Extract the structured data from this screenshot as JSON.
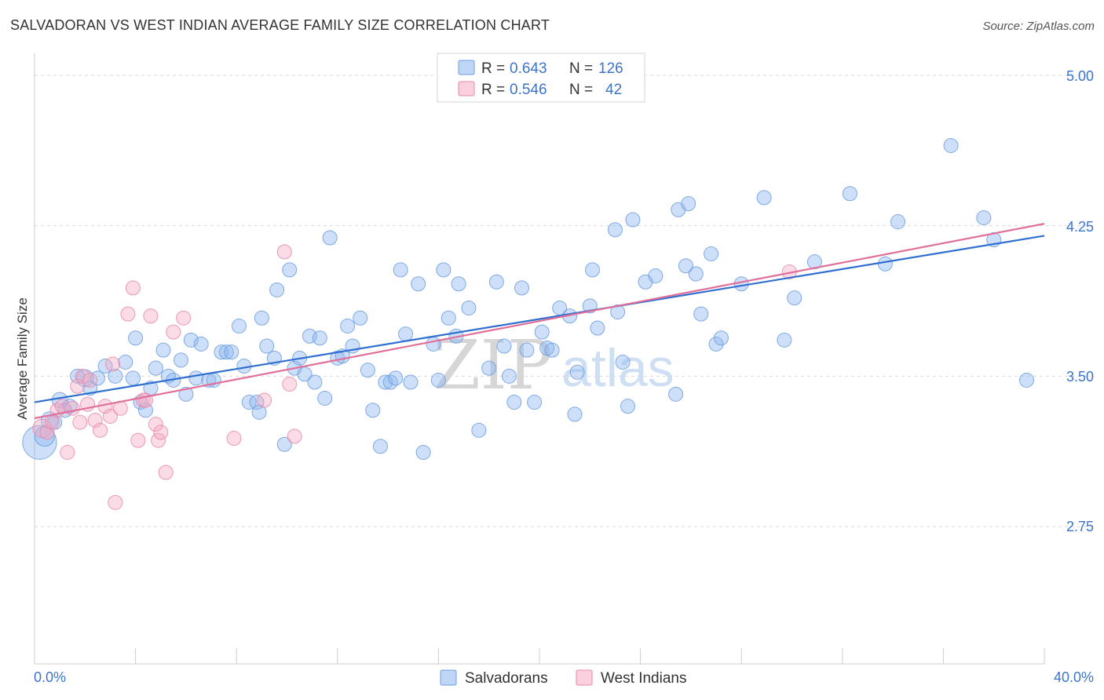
{
  "chart_data": {
    "type": "scatter",
    "title": "SALVADORAN VS WEST INDIAN AVERAGE FAMILY SIZE CORRELATION CHART",
    "source": "Source: ZipAtlas.com",
    "xlabel": "",
    "ylabel": "Average Family Size",
    "xlim": [
      0,
      40
    ],
    "ylim": [
      2.0,
      5.05
    ],
    "x_tick_labels": [
      "0.0%",
      "40.0%"
    ],
    "y_ticks": [
      2.75,
      3.5,
      4.25,
      5.0
    ],
    "y_tick_labels": [
      "2.75",
      "3.50",
      "4.25",
      "5.00"
    ],
    "grid": true,
    "watermark": [
      "ZIP",
      "atlas"
    ],
    "legend": {
      "placement": "top-center",
      "entries": [
        {
          "r_label": "R =",
          "r_value": "0.643",
          "n_label": "N =",
          "n_value": "126"
        },
        {
          "r_label": "R =",
          "r_value": "0.546",
          "n_label": "N =",
          "n_value": "42"
        }
      ]
    },
    "series": [
      {
        "name": "Salvadorans",
        "color": "#8ab4f0",
        "stroke": "#6c9ce0",
        "trend_color": "#2f6fd0",
        "trend": {
          "x": [
            0,
            40
          ],
          "y": [
            3.37,
            4.2
          ]
        },
        "points": [
          [
            0.2,
            3.17,
            24
          ],
          [
            0.4,
            3.2,
            14
          ],
          [
            0.6,
            3.28,
            12
          ],
          [
            0.8,
            3.27,
            10
          ],
          [
            1.0,
            3.38,
            11
          ],
          [
            1.2,
            3.33,
            10
          ],
          [
            1.4,
            3.35,
            10
          ],
          [
            1.7,
            3.5,
            10
          ],
          [
            2.0,
            3.49,
            12
          ],
          [
            2.2,
            3.44,
            10
          ],
          [
            2.5,
            3.49,
            10
          ],
          [
            2.8,
            3.55,
            10
          ],
          [
            3.2,
            3.5,
            10
          ],
          [
            3.6,
            3.57,
            10
          ],
          [
            3.9,
            3.49,
            10
          ],
          [
            4.0,
            3.69,
            10
          ],
          [
            4.2,
            3.37,
            10
          ],
          [
            4.4,
            3.33,
            10
          ],
          [
            4.6,
            3.44,
            10
          ],
          [
            4.8,
            3.54,
            10
          ],
          [
            5.1,
            3.63,
            10
          ],
          [
            5.3,
            3.5,
            10
          ],
          [
            5.5,
            3.48,
            10
          ],
          [
            5.8,
            3.58,
            10
          ],
          [
            6.0,
            3.41,
            10
          ],
          [
            6.2,
            3.68,
            10
          ],
          [
            6.4,
            3.49,
            10
          ],
          [
            6.6,
            3.66,
            10
          ],
          [
            6.9,
            3.48,
            10
          ],
          [
            7.1,
            3.48,
            10
          ],
          [
            7.4,
            3.62,
            10
          ],
          [
            7.6,
            3.62,
            10
          ],
          [
            7.8,
            3.62,
            10
          ],
          [
            8.1,
            3.75,
            10
          ],
          [
            8.3,
            3.55,
            10
          ],
          [
            8.5,
            3.37,
            10
          ],
          [
            8.8,
            3.37,
            10
          ],
          [
            8.9,
            3.32,
            10
          ],
          [
            9.0,
            3.79,
            10
          ],
          [
            9.2,
            3.65,
            10
          ],
          [
            9.5,
            3.59,
            10
          ],
          [
            9.6,
            3.93,
            10
          ],
          [
            9.9,
            3.16,
            10
          ],
          [
            10.1,
            4.03,
            10
          ],
          [
            10.3,
            3.54,
            10
          ],
          [
            10.5,
            3.59,
            10
          ],
          [
            10.7,
            3.51,
            10
          ],
          [
            10.9,
            3.7,
            10
          ],
          [
            11.1,
            3.47,
            10
          ],
          [
            11.3,
            3.69,
            10
          ],
          [
            11.5,
            3.39,
            10
          ],
          [
            11.7,
            4.19,
            10
          ],
          [
            12.0,
            3.59,
            10
          ],
          [
            12.2,
            3.6,
            10
          ],
          [
            12.4,
            3.75,
            10
          ],
          [
            12.6,
            3.65,
            10
          ],
          [
            12.9,
            3.79,
            10
          ],
          [
            13.2,
            3.53,
            10
          ],
          [
            13.4,
            3.33,
            10
          ],
          [
            13.7,
            3.15,
            10
          ],
          [
            13.9,
            3.47,
            10
          ],
          [
            14.1,
            3.47,
            10
          ],
          [
            14.3,
            3.49,
            10
          ],
          [
            14.5,
            4.03,
            10
          ],
          [
            14.7,
            3.71,
            10
          ],
          [
            14.9,
            3.47,
            10
          ],
          [
            15.2,
            3.96,
            10
          ],
          [
            15.4,
            3.12,
            10
          ],
          [
            15.8,
            3.66,
            10
          ],
          [
            16.0,
            3.48,
            10
          ],
          [
            16.2,
            4.03,
            10
          ],
          [
            16.4,
            3.79,
            10
          ],
          [
            16.7,
            3.7,
            10
          ],
          [
            16.8,
            3.96,
            10
          ],
          [
            17.2,
            3.84,
            10
          ],
          [
            17.6,
            3.23,
            10
          ],
          [
            18.0,
            3.54,
            10
          ],
          [
            18.3,
            3.97,
            10
          ],
          [
            18.6,
            3.65,
            10
          ],
          [
            18.8,
            3.5,
            10
          ],
          [
            19.0,
            3.37,
            10
          ],
          [
            19.3,
            3.94,
            10
          ],
          [
            19.5,
            3.63,
            10
          ],
          [
            19.8,
            3.37,
            10
          ],
          [
            20.1,
            3.72,
            10
          ],
          [
            20.3,
            3.64,
            10
          ],
          [
            20.5,
            3.63,
            10
          ],
          [
            20.8,
            3.84,
            10
          ],
          [
            21.2,
            3.8,
            10
          ],
          [
            21.4,
            3.31,
            10
          ],
          [
            21.5,
            3.52,
            10
          ],
          [
            22.0,
            3.85,
            10
          ],
          [
            22.1,
            4.03,
            10
          ],
          [
            22.3,
            3.74,
            10
          ],
          [
            23.0,
            4.23,
            10
          ],
          [
            23.1,
            3.82,
            10
          ],
          [
            23.3,
            3.57,
            10
          ],
          [
            23.5,
            3.35,
            10
          ],
          [
            23.7,
            4.28,
            10
          ],
          [
            24.2,
            3.97,
            10
          ],
          [
            24.6,
            4.0,
            10
          ],
          [
            25.4,
            3.41,
            10
          ],
          [
            25.5,
            4.33,
            10
          ],
          [
            25.8,
            4.05,
            10
          ],
          [
            25.9,
            4.36,
            10
          ],
          [
            26.2,
            4.01,
            10
          ],
          [
            26.4,
            3.81,
            10
          ],
          [
            26.8,
            4.11,
            10
          ],
          [
            27.0,
            3.66,
            10
          ],
          [
            27.2,
            3.69,
            10
          ],
          [
            28.0,
            3.96,
            10
          ],
          [
            28.9,
            4.39,
            10
          ],
          [
            29.7,
            3.68,
            10
          ],
          [
            30.1,
            3.89,
            10
          ],
          [
            30.9,
            4.07,
            10
          ],
          [
            32.3,
            4.41,
            10
          ],
          [
            33.7,
            4.06,
            10
          ],
          [
            34.2,
            4.27,
            10
          ],
          [
            36.3,
            4.65,
            10
          ],
          [
            37.6,
            4.29,
            10
          ],
          [
            38.0,
            4.18,
            10
          ],
          [
            39.3,
            3.48,
            10
          ]
        ]
      },
      {
        "name": "West Indians",
        "color": "#f5aac2",
        "stroke": "#e889aa",
        "trend_color": "#e0709a",
        "trend": {
          "x": [
            0,
            40
          ],
          "y": [
            3.29,
            4.26
          ]
        },
        "points": [
          [
            0.3,
            3.24,
            13
          ],
          [
            0.5,
            3.22,
            10
          ],
          [
            0.7,
            3.27,
            10
          ],
          [
            0.9,
            3.33,
            10
          ],
          [
            1.1,
            3.35,
            10
          ],
          [
            1.3,
            3.12,
            10
          ],
          [
            1.5,
            3.34,
            10
          ],
          [
            1.7,
            3.45,
            10
          ],
          [
            1.8,
            3.27,
            10
          ],
          [
            1.9,
            3.5,
            10
          ],
          [
            2.1,
            3.36,
            10
          ],
          [
            2.2,
            3.48,
            10
          ],
          [
            2.4,
            3.28,
            10
          ],
          [
            2.6,
            3.23,
            10
          ],
          [
            2.8,
            3.35,
            10
          ],
          [
            3.0,
            3.3,
            10
          ],
          [
            3.1,
            3.56,
            10
          ],
          [
            3.2,
            2.87,
            10
          ],
          [
            3.4,
            3.34,
            10
          ],
          [
            3.7,
            3.81,
            10
          ],
          [
            3.9,
            3.94,
            10
          ],
          [
            4.1,
            3.18,
            10
          ],
          [
            4.3,
            3.38,
            10
          ],
          [
            4.4,
            3.38,
            10
          ],
          [
            4.6,
            3.8,
            10
          ],
          [
            4.8,
            3.26,
            10
          ],
          [
            4.9,
            3.18,
            10
          ],
          [
            5.0,
            3.22,
            10
          ],
          [
            5.2,
            3.02,
            10
          ],
          [
            5.5,
            3.72,
            10
          ],
          [
            5.9,
            3.79,
            10
          ],
          [
            7.9,
            3.19,
            10
          ],
          [
            9.1,
            3.38,
            10
          ],
          [
            9.9,
            4.12,
            10
          ],
          [
            10.1,
            3.46,
            10
          ],
          [
            10.3,
            3.2,
            10
          ],
          [
            29.9,
            4.02,
            10
          ]
        ]
      }
    ]
  }
}
